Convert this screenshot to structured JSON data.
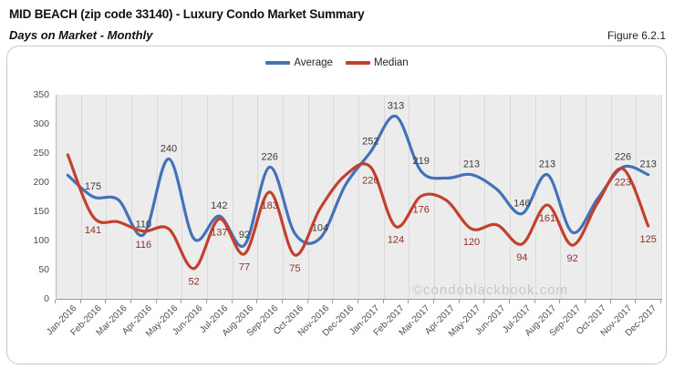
{
  "header": {
    "title": "MID BEACH (zip code 33140) - Luxury Condo Market Summary",
    "subtitle": "Days on Market - Monthly",
    "figure_label": "Figure 6.2.1"
  },
  "legend": [
    {
      "label": "Average",
      "color": "#4472b8"
    },
    {
      "label": "Median",
      "color": "#c2402c"
    }
  ],
  "watermark": "©condoblackbook.com",
  "chart_data": {
    "type": "line",
    "title": "Days on Market - Monthly",
    "categories": [
      "Jan-2016",
      "Feb-2016",
      "Mar-2016",
      "Apr-2016",
      "May-2016",
      "Jun-2016",
      "Jul-2016",
      "Aug-2016",
      "Sep-2016",
      "Oct-2016",
      "Nov-2016",
      "Dec-2016",
      "Jan-2017",
      "Feb-2017",
      "Mar-2017",
      "Apr-2017",
      "May-2017",
      "Jun-2017",
      "Jul-2017",
      "Aug-2017",
      "Sep-2017",
      "Oct-2017",
      "Nov-2017",
      "Dec-2017"
    ],
    "series": [
      {
        "name": "Average",
        "color": "#4472b8",
        "label_color": "#3a3a3a",
        "values": [
          212,
          175,
          170,
          110,
          240,
          103,
          142,
          92,
          226,
          112,
          104,
          195,
          252,
          313,
          219,
          207,
          213,
          188,
          146,
          213,
          114,
          172,
          226,
          213
        ],
        "point_labels": [
          null,
          "175",
          null,
          "110",
          "240",
          null,
          "142",
          "92",
          "226",
          null,
          "104",
          null,
          "252",
          "313",
          "219",
          null,
          "213",
          null,
          "146",
          "213",
          null,
          null,
          "226",
          "213"
        ]
      },
      {
        "name": "Median",
        "color": "#c2402c",
        "label_color": "#8e3126",
        "values": [
          247,
          141,
          132,
          116,
          120,
          52,
          137,
          77,
          183,
          75,
          155,
          212,
          226,
          124,
          176,
          169,
          120,
          127,
          94,
          161,
          92,
          165,
          223,
          125
        ],
        "point_labels": [
          null,
          "141",
          null,
          "116",
          null,
          "52",
          "137",
          "77",
          "183",
          "75",
          null,
          null,
          "226",
          "124",
          "176",
          null,
          "120",
          null,
          "94",
          "161",
          "92",
          null,
          "223",
          "125"
        ]
      }
    ],
    "ylim": [
      0,
      350
    ],
    "y_ticks": [
      350,
      300,
      250,
      200,
      150,
      100,
      50,
      0
    ],
    "grid": "vertical",
    "legend_position": "top-center"
  }
}
